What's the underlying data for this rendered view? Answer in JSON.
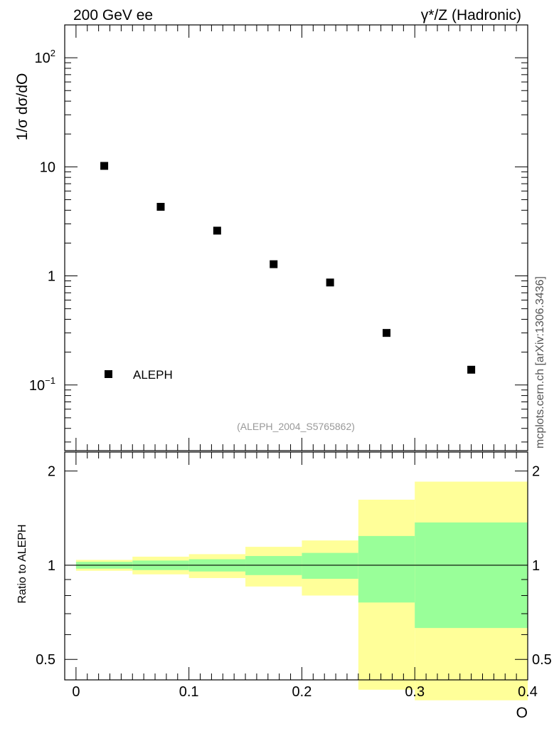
{
  "header": {
    "left": "200 GeV ee",
    "right": "γ*/Z (Hadronic)",
    "side_label": "mcplots.cern.ch [arXiv:1306.3436]"
  },
  "chart_data": [
    {
      "type": "scatter",
      "panel": "main",
      "ylabel": "1/σ  dσ/dO",
      "yscale": "log",
      "ylim": [
        0.025,
        200
      ],
      "xlim": [
        -0.01,
        0.4
      ],
      "y_tick_labels": [
        {
          "value": 0.1,
          "base": "10",
          "exp": "−1"
        },
        {
          "value": 1,
          "base": "1",
          "exp": ""
        },
        {
          "value": 10,
          "base": "10",
          "exp": ""
        },
        {
          "value": 100,
          "base": "10",
          "exp": "2"
        }
      ],
      "series": [
        {
          "name": "ALEPH",
          "marker": "square",
          "color": "#000000",
          "points": [
            {
              "x": 0.025,
              "y": 10.2
            },
            {
              "x": 0.075,
              "y": 4.3
            },
            {
              "x": 0.125,
              "y": 2.6
            },
            {
              "x": 0.175,
              "y": 1.28
            },
            {
              "x": 0.225,
              "y": 0.87
            },
            {
              "x": 0.275,
              "y": 0.3
            },
            {
              "x": 0.35,
              "y": 0.138
            }
          ]
        }
      ],
      "legend": {
        "position": "bottom-left",
        "label": "ALEPH"
      },
      "annotation": "(ALEPH_2004_S5765862)"
    },
    {
      "type": "area",
      "panel": "ratio",
      "ylabel": "Ratio to ALEPH",
      "xlabel": "O",
      "yscale": "log",
      "ylim": [
        0.43,
        2.3
      ],
      "xlim": [
        -0.01,
        0.4
      ],
      "x_ticks": [
        "0",
        "0.1",
        "0.2",
        "0.3",
        "0.4"
      ],
      "y_ticks": [
        "0.5",
        "1",
        "2"
      ],
      "reference_line": 1.0,
      "bins": [
        {
          "lo": 0.0,
          "hi": 0.05,
          "stat": [
            0.975,
            1.025
          ],
          "total": [
            0.96,
            1.04
          ]
        },
        {
          "lo": 0.05,
          "hi": 0.1,
          "stat": [
            0.965,
            1.035
          ],
          "total": [
            0.935,
            1.065
          ]
        },
        {
          "lo": 0.1,
          "hi": 0.15,
          "stat": [
            0.955,
            1.045
          ],
          "total": [
            0.91,
            1.085
          ]
        },
        {
          "lo": 0.15,
          "hi": 0.2,
          "stat": [
            0.93,
            1.07
          ],
          "total": [
            0.855,
            1.145
          ]
        },
        {
          "lo": 0.2,
          "hi": 0.25,
          "stat": [
            0.905,
            1.095
          ],
          "total": [
            0.8,
            1.2
          ]
        },
        {
          "lo": 0.25,
          "hi": 0.3,
          "stat": [
            0.76,
            1.24
          ],
          "total": [
            0.4,
            1.62
          ]
        },
        {
          "lo": 0.3,
          "hi": 0.4,
          "stat": [
            0.63,
            1.37
          ],
          "total": [
            0.37,
            1.85
          ]
        }
      ],
      "colors": {
        "stat": "#99ff99",
        "total": "#ffff99"
      }
    }
  ]
}
